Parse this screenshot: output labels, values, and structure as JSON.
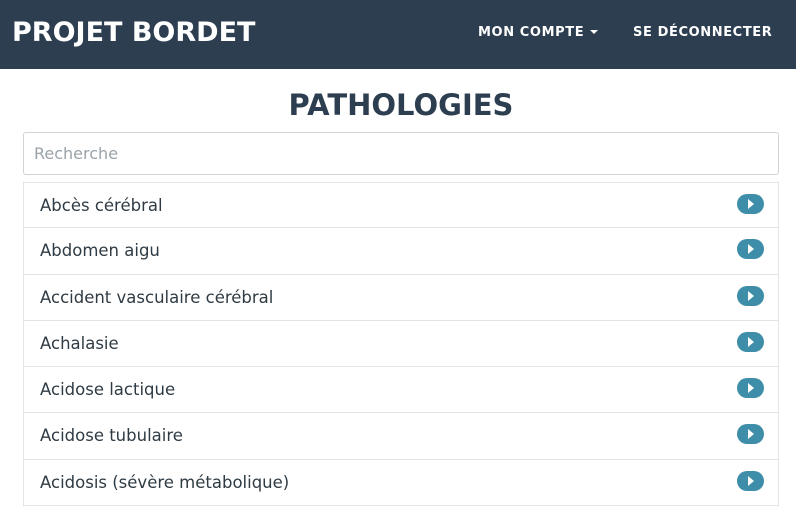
{
  "navbar": {
    "brand": "PROJET BORDET",
    "account_label": "MON COMPTE",
    "logout_label": "SE DÉCONNECTER"
  },
  "page": {
    "title": "PATHOLOGIES"
  },
  "search": {
    "placeholder": "Recherche",
    "value": ""
  },
  "pathologies": [
    {
      "label": "Abcès cérébral",
      "icon": "chevron-right-circle-icon"
    },
    {
      "label": "Abdomen aigu",
      "icon": "chevron-right-circle-icon"
    },
    {
      "label": "Accident vasculaire cérébral",
      "icon": "chevron-right-circle-icon"
    },
    {
      "label": "Achalasie",
      "icon": "chevron-right-circle-icon"
    },
    {
      "label": "Acidose lactique",
      "icon": "chevron-right-circle-icon"
    },
    {
      "label": "Acidose tubulaire",
      "icon": "chevron-right-circle-icon"
    },
    {
      "label": "Acidosis (sévère métabolique)",
      "icon": "chevron-right-circle-icon"
    }
  ],
  "colors": {
    "navbar_bg": "#2c3e50",
    "title": "#2c3e50",
    "accent": "#3e8ea9"
  }
}
